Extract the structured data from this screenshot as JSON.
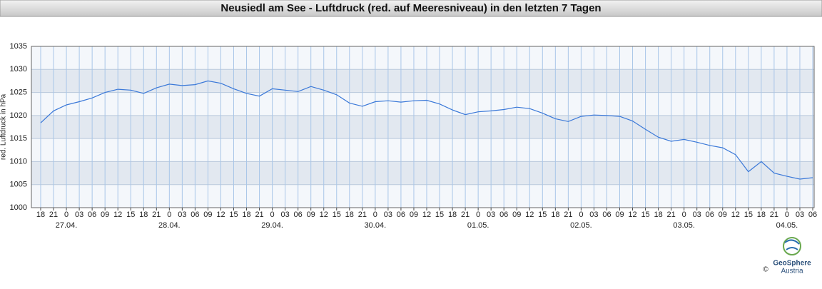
{
  "chart_data": {
    "type": "line",
    "title": "Neusiedl am See - Luftdruck (red. auf Meeresniveau) in den letzten 7 Tagen",
    "y_label": "red. Luftdruck in hPa",
    "categories": [
      "18",
      "21",
      "0",
      "03",
      "06",
      "09",
      "12",
      "15",
      "18",
      "21",
      "0",
      "03",
      "06",
      "09",
      "12",
      "15",
      "18",
      "21",
      "0",
      "03",
      "06",
      "09",
      "12",
      "15",
      "18",
      "21",
      "0",
      "03",
      "06",
      "09",
      "12",
      "15",
      "18",
      "21",
      "0",
      "03",
      "06",
      "09",
      "12",
      "15",
      "18",
      "21",
      "0",
      "03",
      "06",
      "09",
      "12",
      "15",
      "18",
      "21",
      "0",
      "03",
      "06",
      "09",
      "12",
      "15",
      "18",
      "21",
      "0",
      "03",
      "06"
    ],
    "date_labels": [
      null,
      null,
      "27.04.",
      null,
      null,
      null,
      null,
      null,
      null,
      null,
      "28.04.",
      null,
      null,
      null,
      null,
      null,
      null,
      null,
      "29.04.",
      null,
      null,
      null,
      null,
      null,
      null,
      null,
      "30.04.",
      null,
      null,
      null,
      null,
      null,
      null,
      null,
      "01.05.",
      null,
      null,
      null,
      null,
      null,
      null,
      null,
      "02.05.",
      null,
      null,
      null,
      null,
      null,
      null,
      null,
      "03.05.",
      null,
      null,
      null,
      null,
      null,
      null,
      null,
      "04.05.",
      null,
      null
    ],
    "series": [
      {
        "name": "Luftdruck",
        "color": "#3a78d8",
        "values": [
          1018.4,
          1021,
          1022.3,
          1023,
          1023.8,
          1025,
          1025.7,
          1025.5,
          1024.8,
          1026,
          1026.8,
          1026.5,
          1026.7,
          1027.5,
          1027,
          1025.8,
          1024.8,
          1024.2,
          1025.8,
          1025.5,
          1025.2,
          1026.3,
          1025.5,
          1024.5,
          1022.7,
          1022,
          1023,
          1023.2,
          1022.9,
          1023.2,
          1023.3,
          1022.5,
          1021.2,
          1020.2,
          1020.8,
          1021,
          1021.3,
          1021.8,
          1021.5,
          1020.5,
          1019.3,
          1018.7,
          1019.8,
          1020.1,
          1020,
          1019.8,
          1018.8,
          1017,
          1015.3,
          1014.4,
          1014.8,
          1014.2,
          1013.5,
          1013,
          1011.5,
          1007.8,
          1010,
          1007.5,
          1006.8,
          1006.2,
          1006.5
        ]
      }
    ],
    "ylim": [
      1000,
      1035
    ],
    "yticks": [
      1000,
      1005,
      1010,
      1015,
      1020,
      1025,
      1030,
      1035
    ],
    "grid": true,
    "logo": {
      "name": "GeoSphere",
      "sub": "Austria",
      "copyright": "©"
    }
  }
}
